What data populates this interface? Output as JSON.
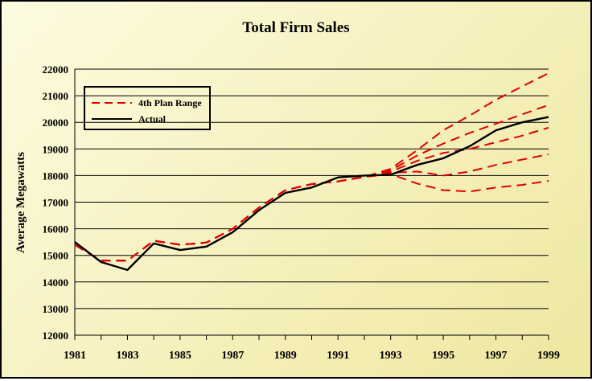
{
  "chart_data": {
    "type": "line",
    "title": "Total Firm Sales",
    "xlabel": "",
    "ylabel": "Average Megawatts",
    "xlim": [
      1981,
      1999
    ],
    "ylim": [
      12000,
      22000
    ],
    "x_ticks": [
      "1981",
      "1983",
      "1985",
      "1987",
      "1989",
      "1991",
      "1993",
      "1995",
      "1997",
      "1999"
    ],
    "y_ticks": [
      "12000",
      "13000",
      "14000",
      "15000",
      "16000",
      "17000",
      "18000",
      "19000",
      "20000",
      "21000",
      "22000"
    ],
    "grid": true,
    "legend_position": "top-left",
    "legend": [
      {
        "label": "4th Plan Range",
        "style": "dashed",
        "color": "#e00000"
      },
      {
        "label": "Actual",
        "style": "solid",
        "color": "#000000"
      }
    ],
    "series": [
      {
        "name": "Actual",
        "color": "#000000",
        "style": "solid",
        "x": [
          1981,
          1982,
          1983,
          1984,
          1985,
          1986,
          1987,
          1988,
          1989,
          1990,
          1991,
          1992,
          1993,
          1994,
          1995,
          1996,
          1997,
          1998,
          1999
        ],
        "values": [
          15500,
          14750,
          14450,
          15450,
          15200,
          15330,
          15870,
          16700,
          17350,
          17550,
          17930,
          18000,
          18030,
          18400,
          18650,
          19100,
          19700,
          20000,
          20200
        ]
      },
      {
        "name": "4th Plan Range",
        "color": "#e00000",
        "style": "dashed",
        "x": [
          1981,
          1982,
          1983,
          1984,
          1985,
          1986,
          1987,
          1988,
          1989,
          1990,
          1991,
          1992,
          1993,
          1994,
          1995,
          1996,
          1997,
          1998,
          1999
        ],
        "values": [
          15400,
          14800,
          14800,
          15550,
          15400,
          15480,
          16000,
          16800,
          17450,
          17680,
          17780,
          17950,
          18250,
          18950,
          19700,
          20250,
          20850,
          21350,
          21850
        ]
      },
      {
        "name": "4th Plan Range",
        "color": "#e00000",
        "style": "dashed",
        "x": [
          1981,
          1982,
          1983,
          1984,
          1985,
          1986,
          1987,
          1988,
          1989,
          1990,
          1991,
          1992,
          1993,
          1994,
          1995,
          1996,
          1997,
          1998,
          1999
        ],
        "values": [
          15400,
          14800,
          14800,
          15550,
          15400,
          15480,
          16000,
          16800,
          17450,
          17680,
          17780,
          17950,
          18200,
          18750,
          19200,
          19600,
          19950,
          20300,
          20650
        ]
      },
      {
        "name": "4th Plan Range",
        "color": "#e00000",
        "style": "dashed",
        "x": [
          1981,
          1982,
          1983,
          1984,
          1985,
          1986,
          1987,
          1988,
          1989,
          1990,
          1991,
          1992,
          1993,
          1994,
          1995,
          1996,
          1997,
          1998,
          1999
        ],
        "values": [
          15400,
          14800,
          14800,
          15550,
          15400,
          15480,
          16000,
          16800,
          17450,
          17680,
          17780,
          17950,
          18150,
          18550,
          18850,
          19000,
          19250,
          19500,
          19800
        ]
      },
      {
        "name": "4th Plan Range",
        "color": "#e00000",
        "style": "dashed",
        "x": [
          1981,
          1982,
          1983,
          1984,
          1985,
          1986,
          1987,
          1988,
          1989,
          1990,
          1991,
          1992,
          1993,
          1994,
          1995,
          1996,
          1997,
          1998,
          1999
        ],
        "values": [
          15400,
          14800,
          14800,
          15550,
          15400,
          15480,
          16000,
          16800,
          17450,
          17680,
          17780,
          17950,
          18100,
          18150,
          18000,
          18150,
          18400,
          18600,
          18800
        ]
      },
      {
        "name": "4th Plan Range",
        "color": "#e00000",
        "style": "dashed",
        "x": [
          1981,
          1982,
          1983,
          1984,
          1985,
          1986,
          1987,
          1988,
          1989,
          1990,
          1991,
          1992,
          1993,
          1994,
          1995,
          1996,
          1997,
          1998,
          1999
        ],
        "values": [
          15400,
          14800,
          14800,
          15550,
          15400,
          15480,
          16000,
          16800,
          17450,
          17680,
          17780,
          17950,
          18050,
          17700,
          17450,
          17400,
          17550,
          17650,
          17800
        ]
      }
    ]
  }
}
